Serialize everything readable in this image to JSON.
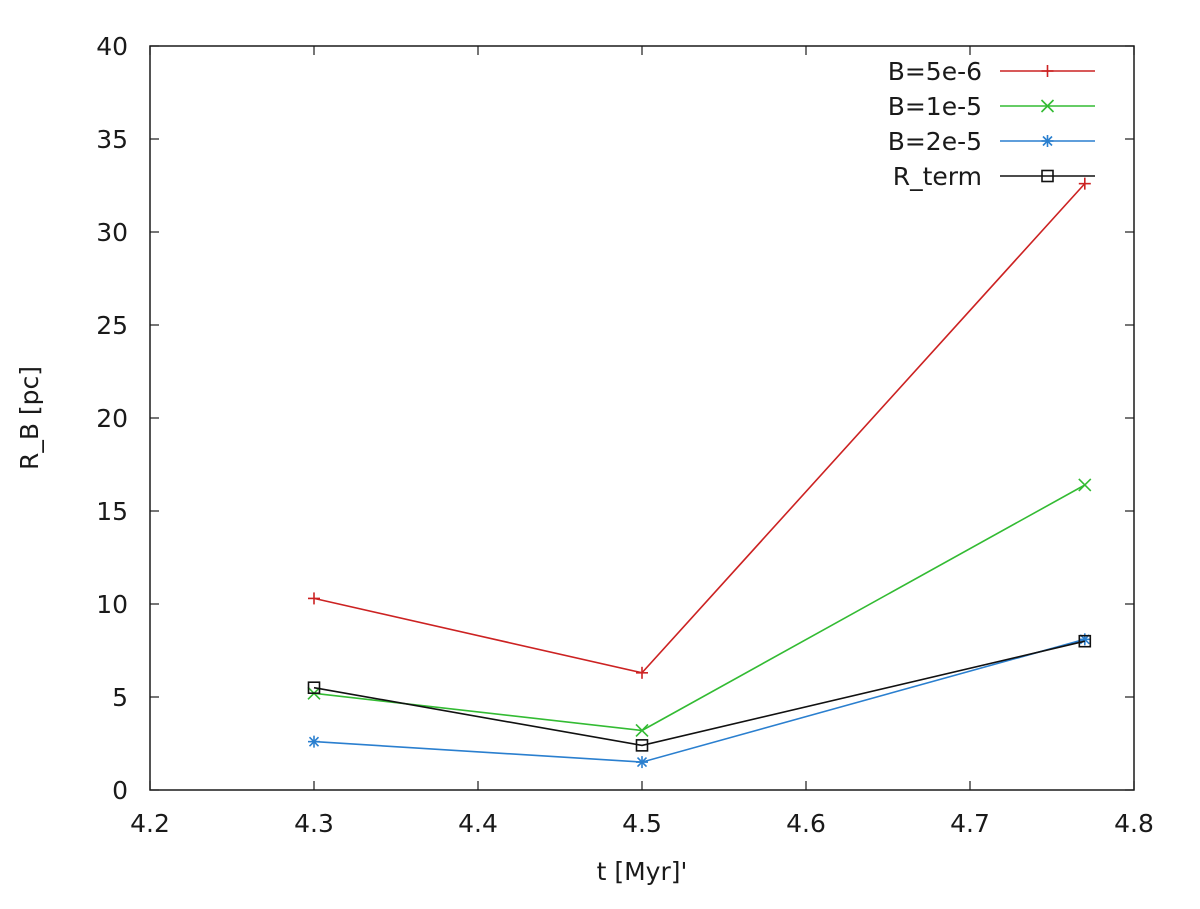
{
  "chart_data": {
    "type": "line",
    "title": "",
    "xlabel": "t [Myr]'",
    "ylabel": "R_B [pc]",
    "xlim": [
      4.2,
      4.8
    ],
    "ylim": [
      0,
      40
    ],
    "x_ticks": [
      "4.2",
      "4.3",
      "4.4",
      "4.5",
      "4.6",
      "4.7",
      "4.8"
    ],
    "y_ticks": [
      "0",
      "5",
      "10",
      "15",
      "20",
      "25",
      "30",
      "35",
      "40"
    ],
    "grid": false,
    "legend_position": "top-right",
    "x": [
      4.3,
      4.5,
      4.77
    ],
    "series": [
      {
        "name": "B=5e-6",
        "color": "#cc2222",
        "marker": "plus",
        "values": [
          10.3,
          6.3,
          32.6
        ]
      },
      {
        "name": "B=1e-5",
        "color": "#33bb33",
        "marker": "cross",
        "values": [
          5.2,
          3.2,
          16.4
        ]
      },
      {
        "name": "B=2e-5",
        "color": "#2a7fcf",
        "marker": "star",
        "values": [
          2.6,
          1.5,
          8.1
        ]
      },
      {
        "name": "R_term",
        "color": "#111111",
        "marker": "square",
        "values": [
          5.5,
          2.4,
          8.0
        ]
      }
    ]
  }
}
